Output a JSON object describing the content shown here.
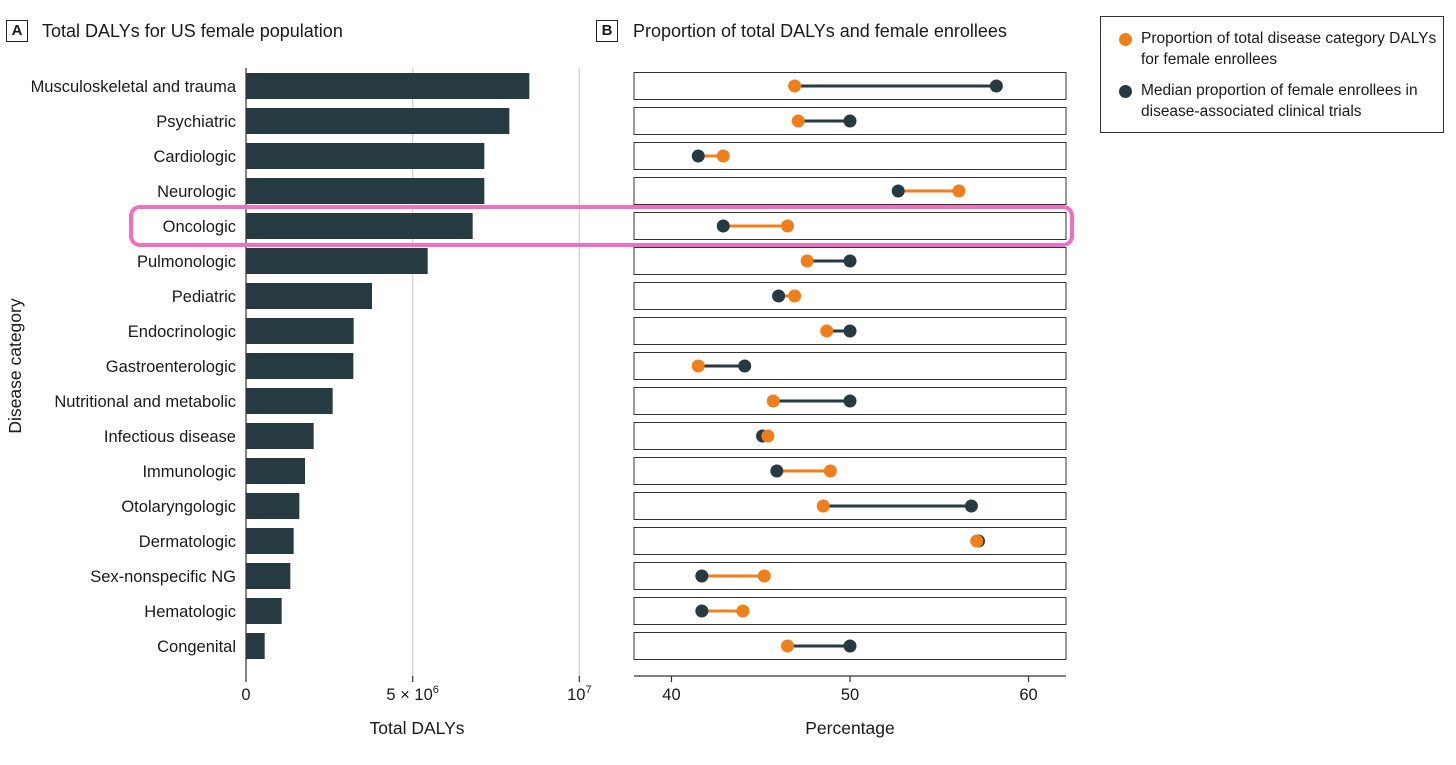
{
  "panel_a": {
    "letter": "A",
    "title": "Total DALYs for US female population"
  },
  "panel_b": {
    "letter": "B",
    "title": "Proportion of total DALYs and female enrollees"
  },
  "legend": {
    "items": [
      {
        "label": "Proportion of total disease category DALYs for female enrollees",
        "color": "#f07f1b"
      },
      {
        "label": "Median proportion of female enrollees in disease-associated clinical trials",
        "color": "#263a42"
      }
    ]
  },
  "colors": {
    "bar": "#263a42",
    "orange": "#f07f1b",
    "dark": "#263a42",
    "highlight": "#ef6fc2",
    "grid": "#d0d0d0"
  },
  "highlighted_category": "Oncologic",
  "chart_data": [
    {
      "type": "bar",
      "orientation": "horizontal",
      "title": "Total DALYs for US female population",
      "xlabel": "Total DALYs",
      "ylabel": "Disease category",
      "xlim": [
        0,
        10500000
      ],
      "xticks": [
        {
          "value": 0,
          "label": "0",
          "sup": ""
        },
        {
          "value": 5000000,
          "label": "5 × 10",
          "sup": "6"
        },
        {
          "value": 10000000,
          "label": "10",
          "sup": "7"
        }
      ],
      "grid": "vertical",
      "categories": [
        "Musculoskeletal and trauma",
        "Psychiatric",
        "Cardiologic",
        "Neurologic",
        "Oncologic",
        "Pulmonologic",
        "Pediatric",
        "Endocrinologic",
        "Gastroenterologic",
        "Nutritional and metabolic",
        "Infectious disease",
        "Immunologic",
        "Otolaryngologic",
        "Dermatologic",
        "Sex-nonspecific NG",
        "Hematologic",
        "Congenital"
      ],
      "values": [
        8500000,
        7900000,
        7150000,
        7150000,
        6800000,
        5450000,
        3780000,
        3230000,
        3220000,
        2600000,
        2030000,
        1770000,
        1600000,
        1430000,
        1330000,
        1070000,
        560000
      ]
    },
    {
      "type": "dumbbell",
      "title": "Proportion of total DALYs and female enrollees",
      "xlabel": "Percentage",
      "xlim": [
        37.9,
        62.1
      ],
      "xticks": [
        40,
        50,
        60
      ],
      "grid": "none",
      "series": [
        {
          "name": "Proportion of total disease category DALYs for female enrollees",
          "values": [
            46.9,
            47.1,
            42.9,
            56.1,
            46.5,
            47.6,
            46.9,
            48.7,
            41.5,
            45.7,
            45.4,
            48.9,
            48.5,
            57.1,
            45.2,
            44.0,
            46.5
          ]
        },
        {
          "name": "Median proportion of female enrollees in disease-associated clinical trials",
          "values": [
            58.2,
            50.0,
            41.5,
            52.7,
            42.9,
            50.0,
            46.0,
            50.0,
            44.1,
            50.0,
            45.1,
            45.9,
            56.8,
            57.2,
            41.7,
            41.7,
            50.0
          ]
        }
      ]
    }
  ]
}
